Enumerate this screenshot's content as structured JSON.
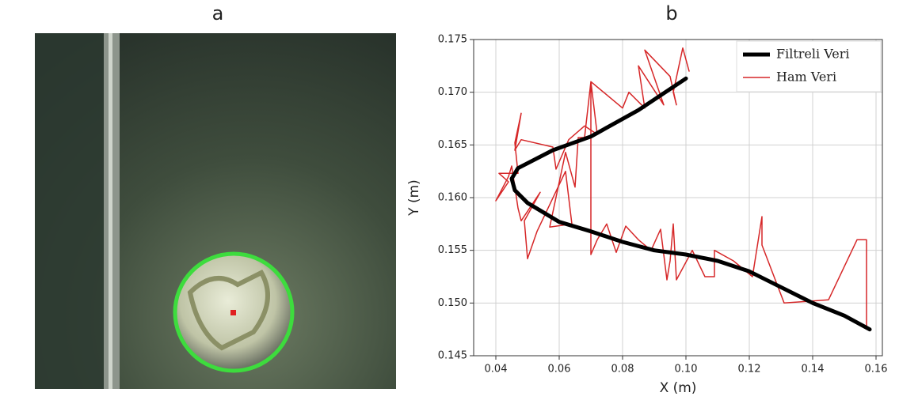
{
  "panel_labels": [
    "a",
    "b"
  ],
  "chart_data": {
    "type": "line",
    "xlabel": "X (m)",
    "ylabel": "Y (m)",
    "xlim": [
      0.033,
      0.162
    ],
    "ylim": [
      0.145,
      0.175
    ],
    "xticks": [
      0.04,
      0.06,
      0.08,
      {
        "value": 0.1,
        "label": "0.10"
      },
      0.12,
      0.14,
      0.16
    ],
    "yticks": [
      0.145,
      {
        "value": 0.15,
        "label": "0.150"
      },
      0.155,
      {
        "value": 0.16,
        "label": "0.160"
      },
      0.165,
      {
        "value": 0.17,
        "label": "0.170"
      },
      0.175
    ],
    "grid": true,
    "legend": "upper right",
    "series": [
      {
        "name": "Filtreli Veri",
        "color": "#000000",
        "line_width": 5,
        "x": [
          0.1,
          0.085,
          0.07,
          0.058,
          0.047,
          0.045,
          0.046,
          0.05,
          0.06,
          0.07,
          0.08,
          0.09,
          0.1,
          0.11,
          0.12,
          0.13,
          0.14,
          0.15,
          0.158
        ],
        "values": [
          0.1713,
          0.1683,
          0.1658,
          0.1645,
          0.1628,
          0.1618,
          0.1607,
          0.1595,
          0.1577,
          0.1568,
          0.1558,
          0.155,
          0.1546,
          0.154,
          0.153,
          0.1515,
          0.15,
          0.1488,
          0.1475
        ]
      },
      {
        "name": "Ham Veri",
        "color": "#d62728",
        "line_width": 1.5,
        "x": [
          0.157,
          0.157,
          0.154,
          0.145,
          0.131,
          0.124,
          0.124,
          0.121,
          0.115,
          0.109,
          0.109,
          0.106,
          0.102,
          0.097,
          0.096,
          0.095,
          0.094,
          0.092,
          0.089,
          0.085,
          0.081,
          0.078,
          0.075,
          0.072,
          0.07,
          0.07,
          0.068,
          0.066,
          0.065,
          0.062,
          0.057,
          0.064,
          0.062,
          0.053,
          0.05,
          0.049,
          0.054,
          0.048,
          0.047,
          0.045,
          0.044,
          0.04,
          0.044,
          0.041,
          0.047,
          0.046,
          0.048,
          0.046,
          0.048,
          0.058,
          0.059,
          0.063,
          0.068,
          0.072,
          0.07,
          0.08,
          0.082,
          0.087,
          0.085,
          0.093,
          0.087,
          0.095,
          0.097,
          0.096,
          0.099,
          0.101
        ],
        "values": [
          0.1478,
          0.156,
          0.156,
          0.1503,
          0.15,
          0.1555,
          0.1582,
          0.1525,
          0.154,
          0.155,
          0.1525,
          0.1525,
          0.155,
          0.1522,
          0.1575,
          0.154,
          0.1522,
          0.157,
          0.155,
          0.156,
          0.1573,
          0.1548,
          0.1575,
          0.156,
          0.1546,
          0.171,
          0.1657,
          0.1657,
          0.161,
          0.1643,
          0.1572,
          0.1575,
          0.1625,
          0.1568,
          0.1542,
          0.1578,
          0.1605,
          0.1578,
          0.159,
          0.163,
          0.162,
          0.1597,
          0.1615,
          0.1623,
          0.1623,
          0.1652,
          0.168,
          0.1645,
          0.1655,
          0.1648,
          0.1627,
          0.1655,
          0.1668,
          0.166,
          0.171,
          0.1685,
          0.17,
          0.1685,
          0.1725,
          0.1688,
          0.174,
          0.1715,
          0.1688,
          0.17,
          0.1742,
          0.172
        ]
      }
    ]
  }
}
